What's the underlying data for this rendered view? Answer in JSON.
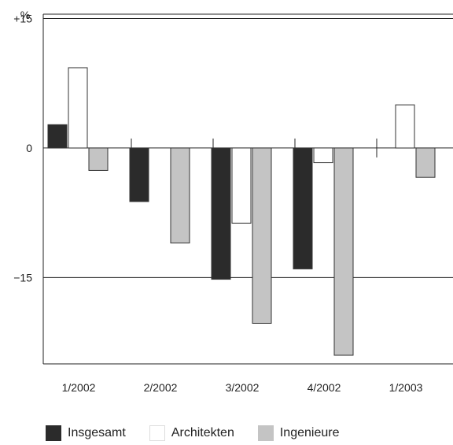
{
  "chart_data": {
    "type": "bar",
    "ylabel": "%",
    "ylim": [
      -25,
      15.5
    ],
    "y_ticks": [
      {
        "value": 15,
        "label": "+15"
      },
      {
        "value": 0,
        "label": "0"
      },
      {
        "value": -15,
        "label": "−15"
      }
    ],
    "categories": [
      "1/2002",
      "2/2002",
      "3/2002",
      "4/2002",
      "1/2003"
    ],
    "series": [
      {
        "name": "Insgesamt",
        "color": "#2b2b2b",
        "values": [
          2.7,
          -6.2,
          -15.2,
          -14.0,
          null
        ]
      },
      {
        "name": "Architekten",
        "color": "#ffffff",
        "values": [
          9.3,
          null,
          -8.7,
          -1.7,
          5.0
        ]
      },
      {
        "name": "Ingenieure",
        "color": "#c4c4c4",
        "values": [
          -2.6,
          -11.0,
          -20.3,
          -24.0,
          -3.4
        ]
      }
    ],
    "grid": false,
    "legend_position": "bottom-left"
  }
}
